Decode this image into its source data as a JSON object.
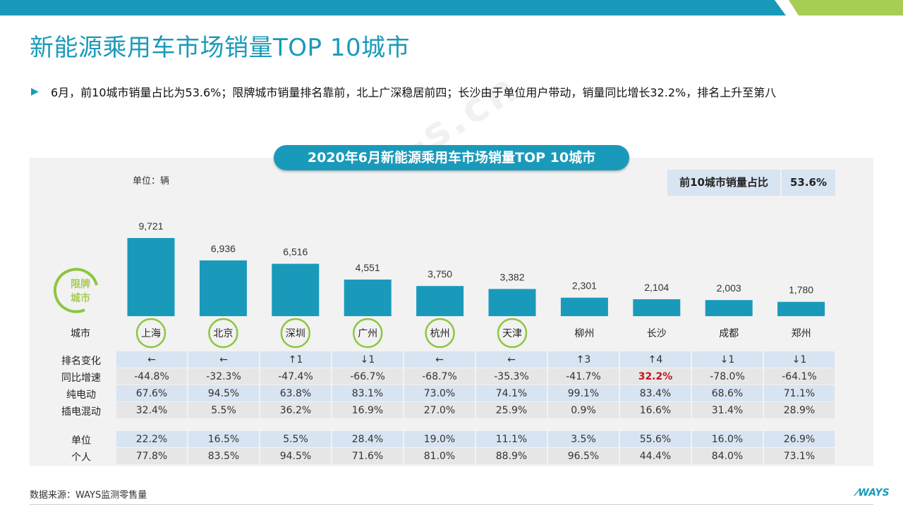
{
  "page": {
    "title": "新能源乘用车市场销量TOP 10城市",
    "summary": "6月，前10城市销量占比为53.6%；限牌城市销量排名靠前，北上广深稳居前四；长沙由于单位用户带动，销量同比增长32.2%，排名上升至第八",
    "source": "数据来源：WAYS监测零售量",
    "logo": "WAYS",
    "watermark": "www.ways-s.cn"
  },
  "colors": {
    "accent": "#1a9aba",
    "bar": "#1a9aba",
    "ring": "#8dc63f",
    "highlight": "#c0161e",
    "lightgreen": "#a7cd54"
  },
  "chart_data": {
    "type": "bar",
    "title": "2020年6月新能源乘用车市场销量TOP 10城市",
    "unit": "单位：辆",
    "categories": [
      "上海",
      "北京",
      "深圳",
      "广州",
      "杭州",
      "天津",
      "柳州",
      "长沙",
      "成都",
      "郑州"
    ],
    "values": [
      9721,
      6936,
      6516,
      4551,
      3750,
      3382,
      2301,
      2104,
      2003,
      1780
    ],
    "value_labels": [
      "9,721",
      "6,936",
      "6,516",
      "4,551",
      "3,750",
      "3,382",
      "2,301",
      "2,104",
      "2,003",
      "1,780"
    ],
    "restricted": [
      true,
      true,
      true,
      true,
      true,
      true,
      false,
      false,
      false,
      false
    ],
    "restricted_label": [
      "限牌",
      "城市"
    ],
    "city_row_label": "城市",
    "share": {
      "label": "前10城市销量占比",
      "value": "53.6%"
    }
  },
  "table": {
    "group1": [
      {
        "label": "排名变化",
        "values": [
          "←",
          "←",
          "↑1",
          "↓1",
          "←",
          "←",
          "↑3",
          "↑4",
          "↓1",
          "↓1"
        ]
      },
      {
        "label": "同比增速",
        "values": [
          "-44.8%",
          "-32.3%",
          "-47.4%",
          "-66.7%",
          "-68.7%",
          "-35.3%",
          "-41.7%",
          "32.2%",
          "-78.0%",
          "-64.1%"
        ]
      },
      {
        "label": "纯电动",
        "values": [
          "67.6%",
          "94.5%",
          "63.8%",
          "83.1%",
          "73.0%",
          "74.1%",
          "99.1%",
          "83.4%",
          "68.6%",
          "71.1%"
        ]
      },
      {
        "label": "插电混动",
        "values": [
          "32.4%",
          "5.5%",
          "36.2%",
          "16.9%",
          "27.0%",
          "25.9%",
          "0.9%",
          "16.6%",
          "31.4%",
          "28.9%"
        ]
      }
    ],
    "group2": [
      {
        "label": "单位",
        "values": [
          "22.2%",
          "16.5%",
          "5.5%",
          "28.4%",
          "19.0%",
          "11.1%",
          "3.5%",
          "55.6%",
          "16.0%",
          "26.9%"
        ]
      },
      {
        "label": "个人",
        "values": [
          "77.8%",
          "83.5%",
          "94.5%",
          "71.6%",
          "81.0%",
          "88.9%",
          "96.5%",
          "44.4%",
          "84.0%",
          "73.1%"
        ]
      }
    ]
  }
}
